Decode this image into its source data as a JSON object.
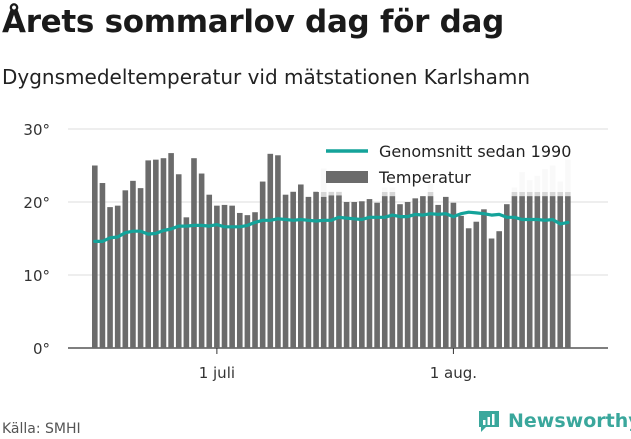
{
  "title": "Årets sommarlov dag för dag",
  "subtitle": "Dygnsmedeltemperatur vid mätstationen Karlshamn",
  "source": "Källa: SMHI",
  "brand": {
    "name": "Newsworthy",
    "icon": "newsworthy-logo-icon",
    "color": "#3aa79c"
  },
  "colors": {
    "bars": "#6b6b6b",
    "bars_faded": "#d6d6d6",
    "average_line": "#14a39a",
    "grid": "#dddddd"
  },
  "chart_data": {
    "type": "bar",
    "x_start_date": "2019-06-15",
    "x_end_date": "2019-08-15",
    "ylim": [
      0,
      30
    ],
    "yticks": [
      0,
      10,
      20,
      30
    ],
    "ytick_labels": [
      "0°",
      "10°",
      "20°",
      "30°"
    ],
    "xticks": [
      {
        "date": "2019-07-01",
        "label": "1 juli"
      },
      {
        "date": "2019-08-01",
        "label": "1 aug."
      }
    ],
    "grid": true,
    "legend_position": "top-right",
    "series": [
      {
        "name": "Temperatur",
        "type": "bar",
        "values": [
          25.0,
          22.6,
          19.3,
          19.5,
          21.6,
          22.9,
          21.9,
          25.7,
          25.8,
          26.0,
          26.7,
          23.8,
          17.9,
          26.0,
          23.9,
          21.0,
          19.5,
          19.6,
          19.5,
          18.5,
          18.2,
          18.6,
          22.8,
          26.6,
          26.4,
          21.0,
          21.4,
          22.4,
          20.7,
          21.4,
          20.7,
          20.9,
          20.9,
          20.0,
          20.0,
          20.1,
          20.4,
          19.9,
          20.8,
          20.8,
          19.7,
          20.0,
          20.5,
          20.8,
          20.8,
          19.6,
          20.7,
          19.9,
          18.1,
          16.4,
          17.3,
          19.0,
          15.0,
          16.0,
          19.7,
          20.8,
          20.8,
          20.8,
          20.8,
          20.8,
          20.8,
          20.8,
          20.8
        ]
      },
      {
        "name": "Genomsnitt sedan 1990",
        "type": "line",
        "values": [
          14.6,
          14.6,
          15.1,
          15.2,
          15.8,
          16.0,
          16.0,
          15.6,
          15.7,
          16.1,
          16.3,
          16.7,
          16.7,
          16.8,
          16.8,
          16.7,
          16.9,
          16.6,
          16.6,
          16.6,
          16.8,
          17.2,
          17.5,
          17.5,
          17.7,
          17.6,
          17.5,
          17.6,
          17.5,
          17.4,
          17.5,
          17.5,
          17.9,
          17.8,
          17.7,
          17.6,
          17.9,
          17.9,
          17.9,
          18.2,
          18.0,
          18.0,
          18.3,
          18.2,
          18.4,
          18.3,
          18.4,
          18.0,
          18.4,
          18.6,
          18.5,
          18.4,
          18.2,
          18.3,
          17.9,
          17.9,
          17.6,
          17.6,
          17.6,
          17.5,
          17.6,
          17.0,
          17.2
        ]
      }
    ],
    "record_overlay": {
      "description_hidden": true,
      "values": [
        null,
        null,
        null,
        null,
        null,
        null,
        null,
        null,
        null,
        null,
        null,
        null,
        null,
        null,
        null,
        null,
        null,
        null,
        null,
        null,
        null,
        null,
        null,
        null,
        null,
        null,
        null,
        null,
        null,
        null,
        24.6,
        21.5,
        21.5,
        null,
        null,
        null,
        null,
        null,
        22.0,
        22.0,
        null,
        null,
        null,
        null,
        22.5,
        null,
        null,
        null,
        null,
        null,
        null,
        null,
        null,
        null,
        null,
        22.0,
        24.1,
        23.0,
        23.6,
        24.5,
        25.0,
        22.8,
        25.8
      ]
    }
  }
}
